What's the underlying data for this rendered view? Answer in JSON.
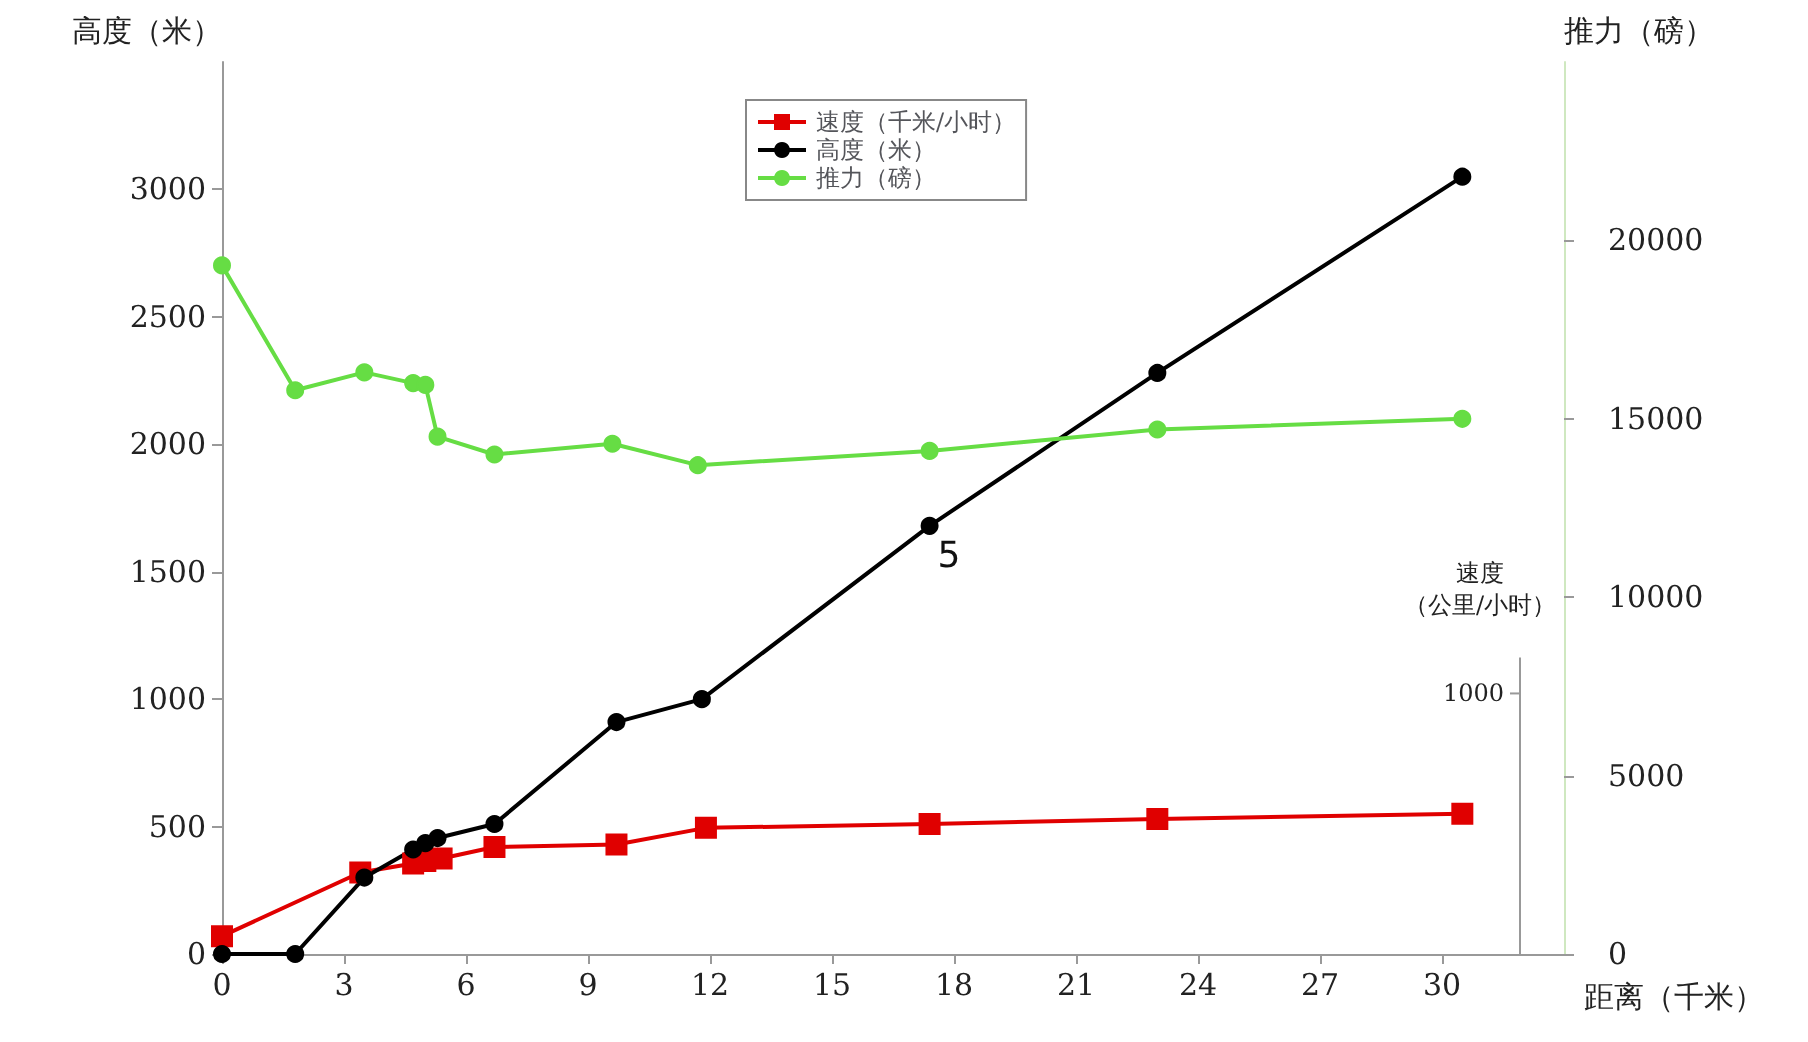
{
  "chart_data": {
    "type": "line",
    "xlabel": "距离（千米）",
    "ylabel": "高度（米）",
    "y2label": "推力（磅）",
    "y3label": "速度（公里/小时）",
    "xlim": [
      0,
      33
    ],
    "xticks": [
      0,
      3,
      6,
      9,
      12,
      15,
      18,
      21,
      24,
      27,
      30
    ],
    "ylim": [
      0,
      3500
    ],
    "yticks": [
      0,
      500,
      1000,
      1500,
      2000,
      2500,
      3000
    ],
    "y2lim": [
      0,
      25000
    ],
    "y2ticks": [
      0,
      5000,
      10000,
      15000,
      20000
    ],
    "grid": false,
    "legend": "top",
    "line_style": "solid",
    "annotations": [
      {
        "text": "5",
        "x": 17.4,
        "y": 1680
      },
      "1000"
    ],
    "series": [
      {
        "name": "速度（千米/小时）",
        "color": "#e00000",
        "marker": "square",
        "x": [
          0,
          3.4,
          4.7,
          5.0,
          5.4,
          6.7,
          9.7,
          11.9,
          17.4,
          23.0,
          30.5
        ],
        "values": [
          70,
          320,
          355,
          365,
          375,
          420,
          430,
          495,
          510,
          530,
          550
        ]
      },
      {
        "name": "高度（米）",
        "color": "#000000",
        "marker": "circle",
        "x": [
          0,
          1.8,
          3.5,
          4.7,
          5.0,
          5.3,
          6.7,
          9.7,
          11.8,
          17.4,
          23.0,
          30.5
        ],
        "values": [
          0,
          0,
          300,
          410,
          435,
          455,
          510,
          910,
          1000,
          1680,
          2280,
          3050
        ]
      },
      {
        "name": "推力（磅）",
        "color": "#66dd44",
        "marker": "circle",
        "axis": "y2",
        "x": [
          0,
          1.8,
          3.5,
          4.7,
          5.0,
          5.3,
          6.7,
          9.6,
          11.7,
          17.4,
          23.0,
          30.5
        ],
        "values": [
          19300,
          15800,
          16300,
          16000,
          15950,
          14500,
          14000,
          14300,
          13700,
          14100,
          14700,
          15000
        ]
      }
    ]
  }
}
